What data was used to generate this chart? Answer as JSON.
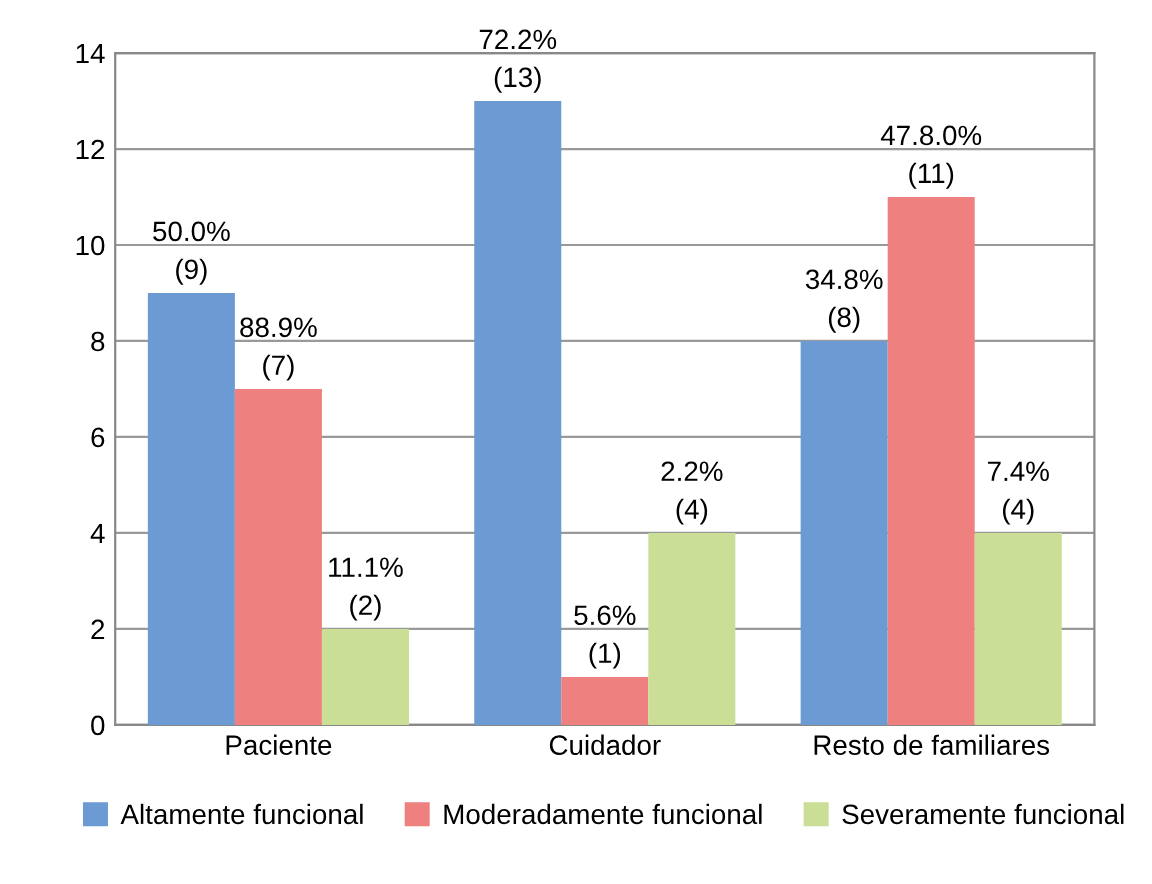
{
  "chart_data": {
    "type": "bar",
    "categories": [
      "Paciente",
      "Cuidador",
      "Resto de familiares"
    ],
    "series": [
      {
        "name": "Altamente funcional",
        "color": "#6b9bd2",
        "values": [
          9,
          13,
          8
        ],
        "value_labels": [
          "50.0%\n(9)",
          "72.2%\n(13)",
          "34.8%\n(8)"
        ]
      },
      {
        "name": "Moderadamente funcional",
        "color": "#ef8080",
        "values": [
          7,
          1,
          11
        ],
        "value_labels": [
          "88.9%\n(7)",
          "5.6%\n(1)",
          "47.8.0%\n(11)"
        ]
      },
      {
        "name": "Severamente funcional",
        "color": "#cade96",
        "values": [
          2,
          4,
          4
        ],
        "value_labels": [
          "11.1%\n(2)",
          "2.2%\n(4)",
          "7.4%\n(4)"
        ]
      }
    ],
    "ylim": [
      0,
      14
    ],
    "yticks": [
      0,
      2,
      4,
      6,
      8,
      10,
      12,
      14
    ],
    "grid": "y",
    "legend": "bottom"
  }
}
